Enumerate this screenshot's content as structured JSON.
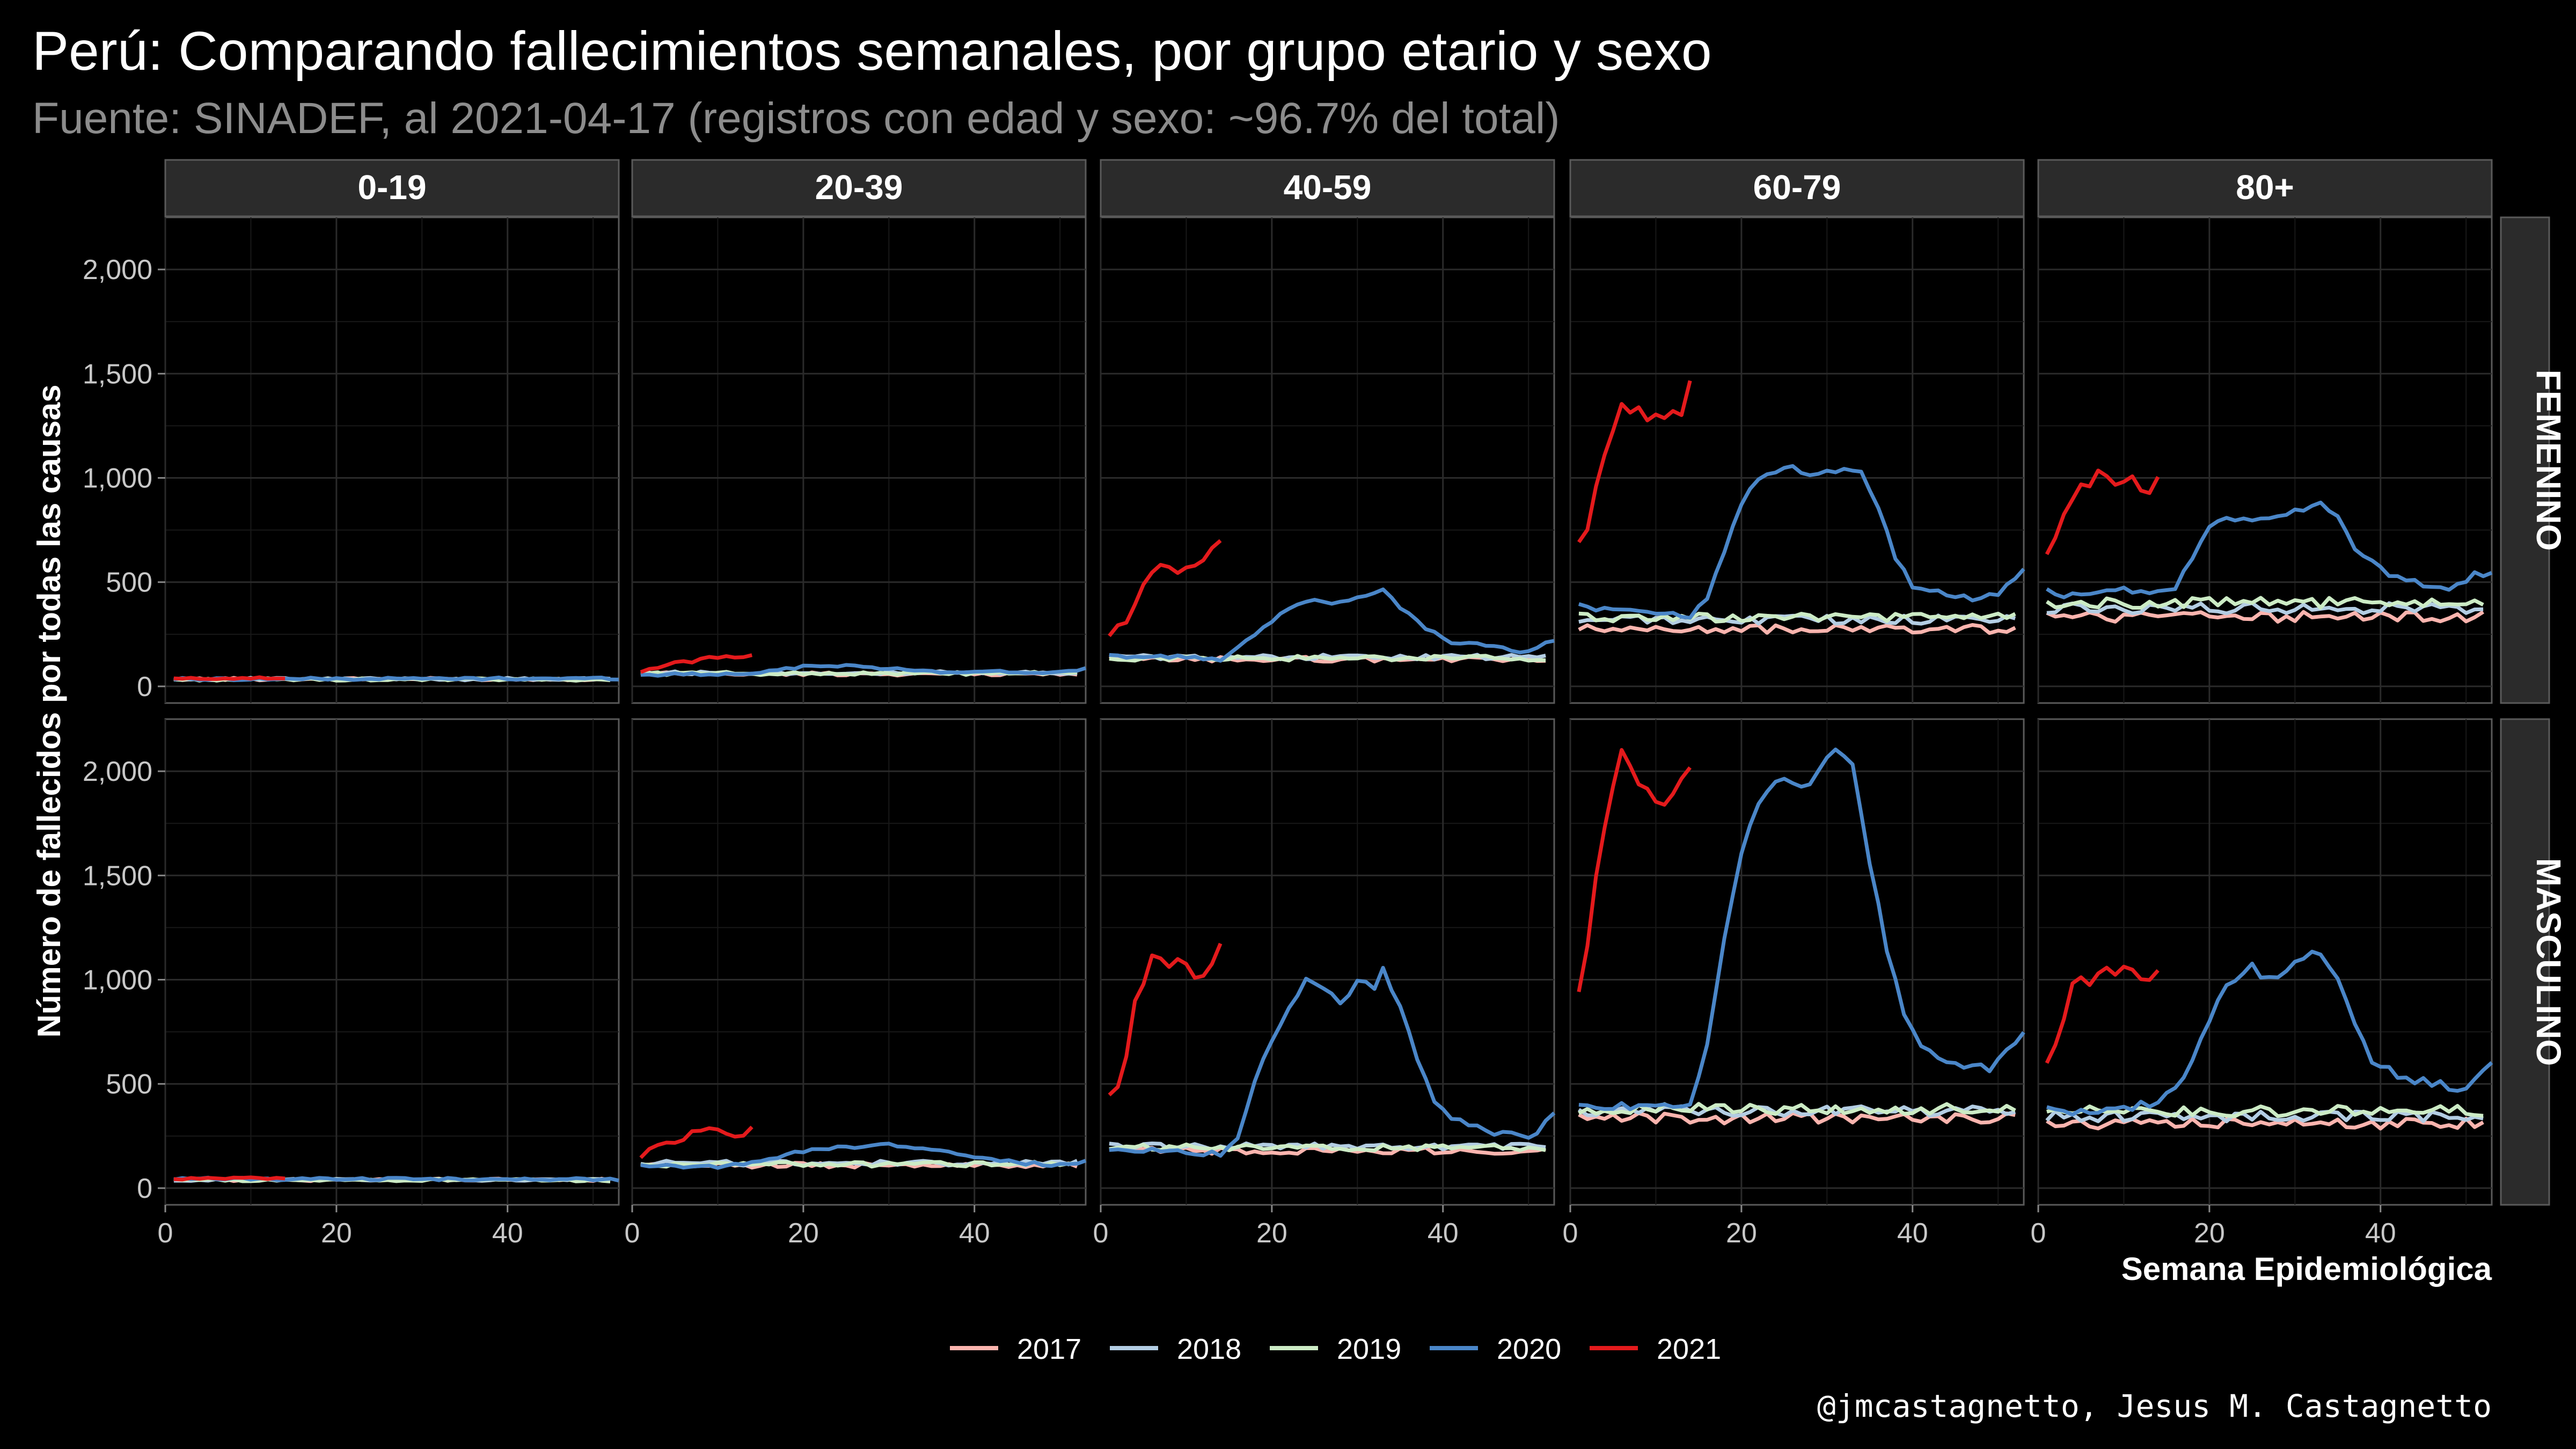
{
  "chart_data": {
    "type": "line",
    "title": "Perú: Comparando fallecimientos semanales, por grupo etario y sexo",
    "subtitle": "Fuente: SINADEF, al 2021-04-17 (registros con edad y sexo: ~96.7% del total)",
    "xlabel": "Semana Epidemiológica",
    "ylabel": "Número de fallecidos por todas las causas",
    "caption": "@jmcastagnetto, Jesus M. Castagnetto",
    "xlim": [
      0,
      53
    ],
    "ylim": [
      -80,
      2250
    ],
    "x_ticks": [
      0,
      20,
      40
    ],
    "y_ticks": [
      0,
      500,
      1000,
      1500,
      2000
    ],
    "y_tick_labels": [
      "0",
      "500",
      "1,000",
      "1,500",
      "2,000"
    ],
    "grid": true,
    "legend_position": "bottom",
    "column_facets": [
      "0-19",
      "20-39",
      "40-59",
      "60-79",
      "80+"
    ],
    "row_facets": [
      "FEMENINO",
      "MASCULINO"
    ],
    "series_order": [
      "2017",
      "2018",
      "2019",
      "2020",
      "2021"
    ],
    "colors": {
      "2017": "#fbb4ae",
      "2018": "#b3cde3",
      "2019": "#ccebc5",
      "2020": "#4a86c8",
      "2021": "#e41a1c"
    },
    "panels": {
      "FEMENINO|0-19": {
        "2017": {
          "base": 35,
          "amp": 6
        },
        "2018": {
          "base": 35,
          "amp": 6
        },
        "2019": {
          "base": 33,
          "amp": 6
        },
        "2020": {
          "kp": [
            [
              1,
              35
            ],
            [
              53,
              38
            ]
          ],
          "amp": 6
        },
        "2021": {
          "kp": [
            [
              1,
              35
            ],
            [
              4,
              38
            ],
            [
              8,
              40
            ],
            [
              14,
              38
            ]
          ],
          "amp": 5
        }
      },
      "FEMENINO|20-39": {
        "2017": {
          "base": 60,
          "amp": 8
        },
        "2018": {
          "base": 65,
          "amp": 8
        },
        "2019": {
          "base": 62,
          "amp": 8
        },
        "2020": {
          "kp": [
            [
              1,
              55
            ],
            [
              10,
              60
            ],
            [
              15,
              65
            ],
            [
              20,
              95
            ],
            [
              25,
              100
            ],
            [
              30,
              85
            ],
            [
              35,
              70
            ],
            [
              40,
              70
            ],
            [
              45,
              70
            ],
            [
              50,
              65
            ],
            [
              53,
              85
            ]
          ],
          "amp": 6
        },
        "2021": {
          "kp": [
            [
              1,
              80
            ],
            [
              4,
              100
            ],
            [
              8,
              130
            ],
            [
              11,
              145
            ],
            [
              14,
              150
            ]
          ],
          "amp": 12
        }
      },
      "FEMENINO|40-59": {
        "2017": {
          "base": 130,
          "amp": 12
        },
        "2018": {
          "base": 140,
          "amp": 12
        },
        "2019": {
          "base": 135,
          "amp": 12
        },
        "2020": {
          "kp": [
            [
              1,
              145
            ],
            [
              10,
              140
            ],
            [
              14,
              130
            ],
            [
              16,
              180
            ],
            [
              19,
              280
            ],
            [
              22,
              380
            ],
            [
              25,
              410
            ],
            [
              28,
              400
            ],
            [
              31,
              440
            ],
            [
              33,
              470
            ],
            [
              35,
              380
            ],
            [
              38,
              280
            ],
            [
              41,
              210
            ],
            [
              45,
              200
            ],
            [
              49,
              160
            ],
            [
              53,
              220
            ]
          ],
          "amp": 8
        },
        "2021": {
          "kp": [
            [
              1,
              250
            ],
            [
              3,
              320
            ],
            [
              5,
              480
            ],
            [
              7,
              580
            ],
            [
              9,
              550
            ],
            [
              11,
              560
            ],
            [
              13,
              640
            ],
            [
              14,
              690
            ]
          ],
          "amp": 25
        }
      },
      "FEMENINO|60-79": {
        "2017": {
          "base": 275,
          "amp": 20
        },
        "2018": {
          "base": 320,
          "amp": 20
        },
        "2019": {
          "base": 330,
          "amp": 20
        },
        "2020": {
          "kp": [
            [
              1,
              390
            ],
            [
              5,
              360
            ],
            [
              10,
              350
            ],
            [
              14,
              340
            ],
            [
              16,
              420
            ],
            [
              18,
              650
            ],
            [
              20,
              880
            ],
            [
              22,
              1000
            ],
            [
              24,
              1030
            ],
            [
              26,
              1060
            ],
            [
              28,
              1010
            ],
            [
              30,
              1030
            ],
            [
              32,
              1040
            ],
            [
              34,
              1020
            ],
            [
              36,
              850
            ],
            [
              38,
              620
            ],
            [
              40,
              480
            ],
            [
              43,
              450
            ],
            [
              47,
              420
            ],
            [
              50,
              440
            ],
            [
              53,
              560
            ]
          ],
          "amp": 12
        },
        "2021": {
          "kp": [
            [
              1,
              670
            ],
            [
              2,
              750
            ],
            [
              3,
              980
            ],
            [
              5,
              1200
            ],
            [
              6,
              1350
            ],
            [
              8,
              1310
            ],
            [
              10,
              1290
            ],
            [
              12,
              1320
            ],
            [
              13,
              1330
            ],
            [
              14,
              1460
            ]
          ],
          "amp": 30
        }
      },
      "FEMENINO|80+": {
        "2017": {
          "base": 335,
          "amp": 25
        },
        "2018": {
          "base": 375,
          "amp": 25
        },
        "2019": {
          "base": 400,
          "amp": 25
        },
        "2020": {
          "kp": [
            [
              1,
              450
            ],
            [
              5,
              430
            ],
            [
              10,
              470
            ],
            [
              13,
              440
            ],
            [
              16,
              480
            ],
            [
              18,
              620
            ],
            [
              20,
              760
            ],
            [
              22,
              810
            ],
            [
              26,
              790
            ],
            [
              30,
              840
            ],
            [
              33,
              890
            ],
            [
              35,
              800
            ],
            [
              37,
              660
            ],
            [
              40,
              560
            ],
            [
              44,
              500
            ],
            [
              48,
              470
            ],
            [
              51,
              530
            ],
            [
              53,
              560
            ]
          ],
          "amp": 20
        },
        "2021": {
          "kp": [
            [
              1,
              650
            ],
            [
              2,
              690
            ],
            [
              3,
              850
            ],
            [
              5,
              950
            ],
            [
              7,
              1020
            ],
            [
              9,
              960
            ],
            [
              11,
              980
            ],
            [
              13,
              950
            ],
            [
              14,
              1000
            ]
          ],
          "amp": 30
        }
      },
      "MASCULINO|0-19": {
        "2017": {
          "base": 40,
          "amp": 6
        },
        "2018": {
          "base": 40,
          "amp": 6
        },
        "2019": {
          "base": 38,
          "amp": 6
        },
        "2020": {
          "kp": [
            [
              1,
              45
            ],
            [
              53,
              42
            ]
          ],
          "amp": 6
        },
        "2021": {
          "kp": [
            [
              1,
              45
            ],
            [
              5,
              48
            ],
            [
              10,
              50
            ],
            [
              14,
              45
            ]
          ],
          "amp": 5
        }
      },
      "MASCULINO|20-39": {
        "2017": {
          "base": 110,
          "amp": 12
        },
        "2018": {
          "base": 120,
          "amp": 12
        },
        "2019": {
          "base": 115,
          "amp": 12
        },
        "2020": {
          "kp": [
            [
              1,
              110
            ],
            [
              10,
              100
            ],
            [
              14,
              120
            ],
            [
              18,
              160
            ],
            [
              22,
              190
            ],
            [
              26,
              200
            ],
            [
              30,
              210
            ],
            [
              34,
              195
            ],
            [
              38,
              170
            ],
            [
              42,
              140
            ],
            [
              46,
              120
            ],
            [
              50,
              110
            ],
            [
              53,
              130
            ]
          ],
          "amp": 8
        },
        "2021": {
          "kp": [
            [
              1,
              160
            ],
            [
              3,
              200
            ],
            [
              6,
              240
            ],
            [
              8,
              290
            ],
            [
              11,
              270
            ],
            [
              12,
              230
            ],
            [
              14,
              290
            ]
          ],
          "amp": 18
        }
      },
      "MASCULINO|40-59": {
        "2017": {
          "base": 180,
          "amp": 15
        },
        "2018": {
          "base": 200,
          "amp": 15
        },
        "2019": {
          "base": 195,
          "amp": 15
        },
        "2020": {
          "kp": [
            [
              1,
              190
            ],
            [
              10,
              170
            ],
            [
              14,
              160
            ],
            [
              16,
              250
            ],
            [
              18,
              500
            ],
            [
              20,
              720
            ],
            [
              22,
              850
            ],
            [
              24,
              1000
            ],
            [
              26,
              960
            ],
            [
              28,
              880
            ],
            [
              30,
              1000
            ],
            [
              32,
              960
            ],
            [
              33,
              1050
            ],
            [
              35,
              860
            ],
            [
              37,
              620
            ],
            [
              39,
              400
            ],
            [
              41,
              330
            ],
            [
              43,
              310
            ],
            [
              46,
              270
            ],
            [
              50,
              240
            ],
            [
              53,
              350
            ]
          ],
          "amp": 15
        },
        "2021": {
          "kp": [
            [
              1,
              430
            ],
            [
              2,
              490
            ],
            [
              3,
              640
            ],
            [
              4,
              880
            ],
            [
              6,
              1130
            ],
            [
              8,
              1090
            ],
            [
              9,
              1120
            ],
            [
              11,
              1010
            ],
            [
              12,
              1020
            ],
            [
              14,
              1190
            ]
          ],
          "amp": 30
        }
      },
      "MASCULINO|60-79": {
        "2017": {
          "base": 335,
          "amp": 25
        },
        "2018": {
          "base": 370,
          "amp": 25
        },
        "2019": {
          "base": 380,
          "amp": 25
        },
        "2020": {
          "kp": [
            [
              1,
              400
            ],
            [
              10,
              380
            ],
            [
              14,
              420
            ],
            [
              15,
              520
            ],
            [
              16,
              700
            ],
            [
              18,
              1200
            ],
            [
              20,
              1600
            ],
            [
              22,
              1850
            ],
            [
              24,
              1970
            ],
            [
              26,
              1950
            ],
            [
              28,
              1920
            ],
            [
              30,
              2050
            ],
            [
              31,
              2100
            ],
            [
              33,
              2020
            ],
            [
              35,
              1550
            ],
            [
              37,
              1150
            ],
            [
              39,
              850
            ],
            [
              41,
              700
            ],
            [
              43,
              620
            ],
            [
              46,
              590
            ],
            [
              49,
              580
            ],
            [
              53,
              750
            ]
          ],
          "amp": 20
        },
        "2021": {
          "kp": [
            [
              1,
              920
            ],
            [
              2,
              1130
            ],
            [
              3,
              1500
            ],
            [
              5,
              1900
            ],
            [
              6,
              2080
            ],
            [
              7,
              2050
            ],
            [
              8,
              1960
            ],
            [
              10,
              1820
            ],
            [
              11,
              1820
            ],
            [
              13,
              1960
            ],
            [
              14,
              2040
            ]
          ],
          "amp": 35
        }
      },
      "MASCULINO|80+": {
        "2017": {
          "base": 310,
          "amp": 25
        },
        "2018": {
          "base": 345,
          "amp": 25
        },
        "2019": {
          "base": 370,
          "amp": 25
        },
        "2020": {
          "kp": [
            [
              1,
              370
            ],
            [
              6,
              360
            ],
            [
              10,
              380
            ],
            [
              14,
              420
            ],
            [
              17,
              520
            ],
            [
              19,
              720
            ],
            [
              21,
              900
            ],
            [
              23,
              1010
            ],
            [
              25,
              1060
            ],
            [
              27,
              1000
            ],
            [
              29,
              1060
            ],
            [
              31,
              1110
            ],
            [
              33,
              1140
            ],
            [
              35,
              1020
            ],
            [
              37,
              780
            ],
            [
              39,
              610
            ],
            [
              42,
              540
            ],
            [
              46,
              500
            ],
            [
              50,
              480
            ],
            [
              53,
              600
            ]
          ],
          "amp": 20
        },
        "2021": {
          "kp": [
            [
              1,
              580
            ],
            [
              2,
              680
            ],
            [
              3,
              820
            ],
            [
              4,
              1000
            ],
            [
              6,
              990
            ],
            [
              8,
              1040
            ],
            [
              10,
              1050
            ],
            [
              12,
              1020
            ],
            [
              13,
              1000
            ],
            [
              14,
              1060
            ]
          ],
          "amp": 25
        }
      }
    }
  }
}
